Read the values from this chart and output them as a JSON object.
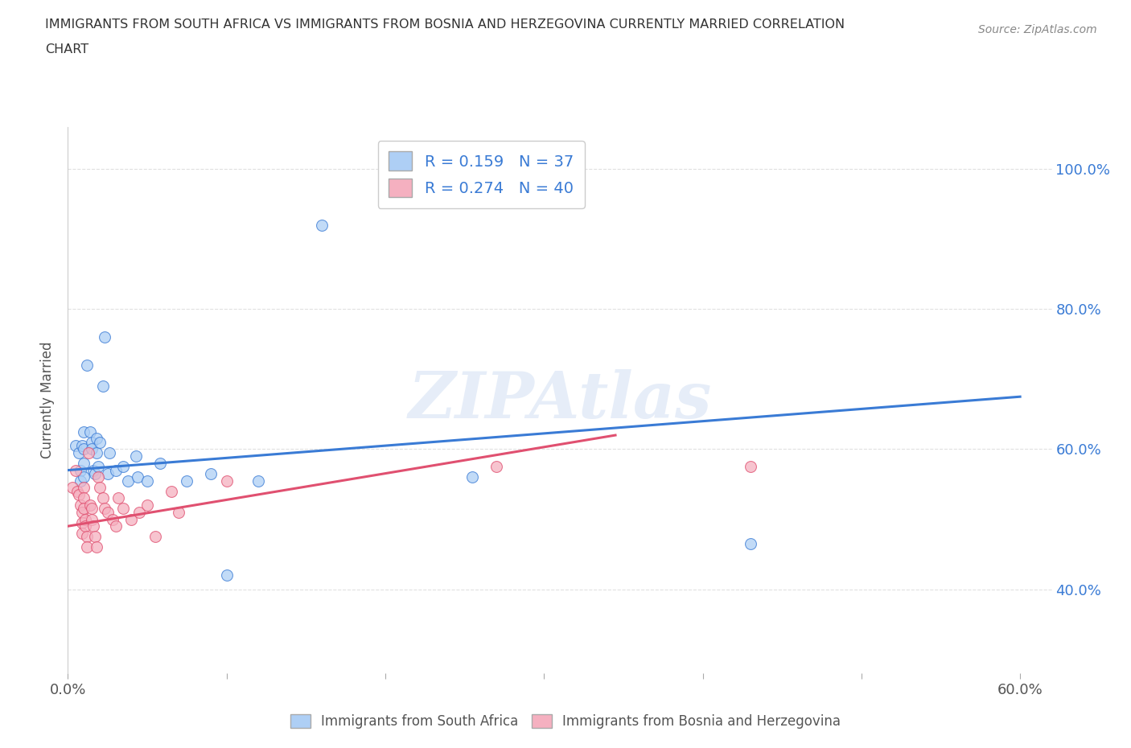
{
  "title_line1": "IMMIGRANTS FROM SOUTH AFRICA VS IMMIGRANTS FROM BOSNIA AND HERZEGOVINA CURRENTLY MARRIED CORRELATION",
  "title_line2": "CHART",
  "source": "Source: ZipAtlas.com",
  "ylabel": "Currently Married",
  "xlim": [
    0.0,
    0.62
  ],
  "ylim": [
    0.28,
    1.06
  ],
  "xtick_labels": [
    "0.0%",
    "",
    "",
    "",
    "",
    "",
    "60.0%"
  ],
  "xtick_vals": [
    0.0,
    0.1,
    0.2,
    0.3,
    0.4,
    0.5,
    0.6
  ],
  "ytick_labels": [
    "40.0%",
    "60.0%",
    "80.0%",
    "100.0%"
  ],
  "ytick_vals": [
    0.4,
    0.6,
    0.8,
    1.0
  ],
  "color_blue": "#aecff5",
  "color_pink": "#f5b0c0",
  "line_blue": "#3a7bd5",
  "line_pink": "#e05070",
  "R_blue": 0.159,
  "N_blue": 37,
  "R_pink": 0.274,
  "N_pink": 40,
  "blue_points": [
    [
      0.005,
      0.605
    ],
    [
      0.007,
      0.595
    ],
    [
      0.008,
      0.57
    ],
    [
      0.008,
      0.555
    ],
    [
      0.009,
      0.605
    ],
    [
      0.01,
      0.625
    ],
    [
      0.01,
      0.6
    ],
    [
      0.01,
      0.58
    ],
    [
      0.01,
      0.56
    ],
    [
      0.012,
      0.72
    ],
    [
      0.014,
      0.625
    ],
    [
      0.015,
      0.61
    ],
    [
      0.015,
      0.6
    ],
    [
      0.016,
      0.57
    ],
    [
      0.017,
      0.565
    ],
    [
      0.018,
      0.615
    ],
    [
      0.018,
      0.595
    ],
    [
      0.019,
      0.575
    ],
    [
      0.02,
      0.61
    ],
    [
      0.022,
      0.69
    ],
    [
      0.023,
      0.76
    ],
    [
      0.025,
      0.565
    ],
    [
      0.026,
      0.595
    ],
    [
      0.03,
      0.57
    ],
    [
      0.035,
      0.575
    ],
    [
      0.038,
      0.555
    ],
    [
      0.043,
      0.59
    ],
    [
      0.044,
      0.56
    ],
    [
      0.05,
      0.555
    ],
    [
      0.058,
      0.58
    ],
    [
      0.075,
      0.555
    ],
    [
      0.09,
      0.565
    ],
    [
      0.1,
      0.42
    ],
    [
      0.12,
      0.555
    ],
    [
      0.16,
      0.92
    ],
    [
      0.255,
      0.56
    ],
    [
      0.43,
      0.465
    ]
  ],
  "pink_points": [
    [
      0.003,
      0.545
    ],
    [
      0.005,
      0.57
    ],
    [
      0.006,
      0.54
    ],
    [
      0.007,
      0.535
    ],
    [
      0.008,
      0.52
    ],
    [
      0.009,
      0.51
    ],
    [
      0.009,
      0.495
    ],
    [
      0.009,
      0.48
    ],
    [
      0.01,
      0.545
    ],
    [
      0.01,
      0.53
    ],
    [
      0.01,
      0.515
    ],
    [
      0.011,
      0.5
    ],
    [
      0.011,
      0.49
    ],
    [
      0.012,
      0.475
    ],
    [
      0.012,
      0.46
    ],
    [
      0.013,
      0.595
    ],
    [
      0.014,
      0.52
    ],
    [
      0.015,
      0.515
    ],
    [
      0.015,
      0.5
    ],
    [
      0.016,
      0.49
    ],
    [
      0.017,
      0.475
    ],
    [
      0.018,
      0.46
    ],
    [
      0.019,
      0.56
    ],
    [
      0.02,
      0.545
    ],
    [
      0.022,
      0.53
    ],
    [
      0.023,
      0.515
    ],
    [
      0.025,
      0.51
    ],
    [
      0.028,
      0.5
    ],
    [
      0.03,
      0.49
    ],
    [
      0.032,
      0.53
    ],
    [
      0.035,
      0.515
    ],
    [
      0.04,
      0.5
    ],
    [
      0.045,
      0.51
    ],
    [
      0.05,
      0.52
    ],
    [
      0.055,
      0.475
    ],
    [
      0.065,
      0.54
    ],
    [
      0.07,
      0.51
    ],
    [
      0.1,
      0.555
    ],
    [
      0.27,
      0.575
    ],
    [
      0.43,
      0.575
    ]
  ],
  "blue_trend": [
    0.0,
    0.6,
    0.57,
    0.675
  ],
  "pink_trend": [
    0.0,
    0.345,
    0.49,
    0.62
  ],
  "watermark_text": "ZIPAtlas",
  "background_color": "#ffffff",
  "grid_color": "#dddddd"
}
